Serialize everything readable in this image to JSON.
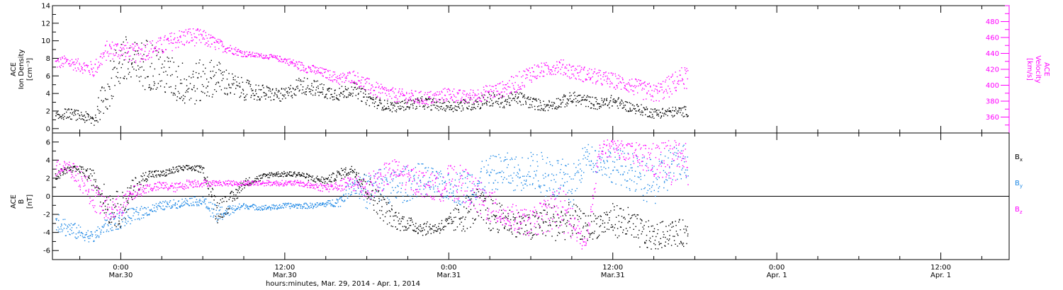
{
  "colors": {
    "axis": "#000000",
    "density": "#000000",
    "velocity": "#ff00ff",
    "bx": "#000000",
    "by": "#1e88e5",
    "bz": "#ff00ff"
  },
  "xaxis": {
    "label": "hours:minutes, Mar. 29, 2014 - Apr. 1, 2014",
    "range_hours": [
      -5,
      65
    ],
    "data_end_hours": 41.5,
    "ticks": [
      {
        "hours": 0,
        "time": "0:00",
        "date": "Mar.30"
      },
      {
        "hours": 12,
        "time": "12:00",
        "date": "Mar.30"
      },
      {
        "hours": 24,
        "time": "0:00",
        "date": "Mar.31"
      },
      {
        "hours": 36,
        "time": "12:00",
        "date": "Mar.31"
      },
      {
        "hours": 48,
        "time": "0:00",
        "date": "Apr. 1"
      },
      {
        "hours": 60,
        "time": "12:00",
        "date": "Apr. 1"
      }
    ]
  },
  "chart_data": [
    {
      "type": "scatter",
      "panel": "top",
      "ylabel_left": [
        "ACE",
        "Ion Density",
        "[cm⁻³]"
      ],
      "ylabel_right": [
        "ACE",
        "Velocity",
        "[km/s]"
      ],
      "ylim_left": [
        -0.5,
        14
      ],
      "ylim_right": [
        340,
        500
      ],
      "yticks_left": [
        0,
        2,
        4,
        6,
        8,
        10,
        12,
        14
      ],
      "yticks_right": [
        360,
        380,
        400,
        420,
        440,
        460,
        480
      ],
      "series": [
        {
          "key": "density",
          "axis": "left",
          "x": [
            -5,
            -4,
            -3,
            -2,
            -1,
            0,
            1,
            2,
            3,
            4,
            5,
            6,
            7,
            8,
            9,
            10,
            11,
            12,
            13,
            14,
            15,
            16,
            17,
            18,
            19,
            20,
            21,
            22,
            23,
            24,
            25,
            26,
            27,
            28,
            29,
            30,
            31,
            32,
            33,
            34,
            35,
            36,
            37,
            38,
            39,
            40,
            41
          ],
          "y": [
            1.2,
            1.8,
            1.5,
            1.0,
            4.5,
            8.0,
            7.0,
            7.5,
            6.5,
            5.5,
            5.0,
            5.5,
            6.0,
            5.0,
            4.5,
            4.2,
            4.0,
            3.8,
            5.0,
            4.8,
            4.2,
            4.0,
            4.6,
            3.5,
            2.8,
            2.5,
            2.8,
            3.0,
            2.8,
            2.6,
            2.7,
            3.0,
            3.4,
            3.1,
            3.6,
            3.0,
            2.6,
            3.0,
            3.5,
            3.2,
            2.8,
            3.2,
            2.6,
            2.2,
            1.8,
            1.9,
            2.0
          ],
          "spread": [
            0.5,
            0.6,
            0.6,
            0.8,
            2.5,
            3.0,
            3.0,
            3.0,
            2.5,
            2.5,
            2.5,
            2.5,
            2.0,
            1.5,
            1.2,
            1.0,
            0.8,
            0.8,
            1.0,
            1.0,
            0.8,
            0.8,
            0.8,
            0.8,
            0.6,
            0.6,
            0.6,
            0.7,
            0.7,
            0.6,
            0.7,
            0.8,
            0.9,
            0.7,
            0.8,
            0.7,
            0.6,
            0.7,
            0.8,
            0.7,
            0.7,
            0.7,
            0.6,
            0.6,
            0.6,
            0.6,
            0.6
          ]
        },
        {
          "key": "velocity",
          "axis": "right",
          "x": [
            -5,
            -4,
            -3,
            -2,
            -1,
            0,
            1,
            2,
            3,
            4,
            5,
            6,
            7,
            8,
            9,
            10,
            11,
            12,
            13,
            14,
            15,
            16,
            17,
            18,
            19,
            20,
            21,
            22,
            23,
            24,
            25,
            26,
            27,
            28,
            29,
            30,
            31,
            32,
            33,
            34,
            35,
            36,
            37,
            38,
            39,
            40,
            41
          ],
          "y": [
            428,
            430,
            425,
            420,
            445,
            445,
            440,
            445,
            450,
            458,
            462,
            460,
            452,
            446,
            440,
            438,
            436,
            432,
            425,
            420,
            415,
            408,
            412,
            400,
            392,
            388,
            386,
            384,
            385,
            390,
            385,
            388,
            392,
            396,
            404,
            416,
            420,
            425,
            418,
            414,
            410,
            406,
            402,
            395,
            390,
            398,
            410
          ],
          "spread": [
            8,
            8,
            8,
            10,
            12,
            12,
            12,
            12,
            12,
            12,
            12,
            10,
            8,
            6,
            4,
            3,
            3,
            4,
            6,
            6,
            6,
            8,
            8,
            10,
            10,
            9,
            9,
            9,
            9,
            9,
            9,
            9,
            10,
            10,
            12,
            12,
            9,
            10,
            10,
            10,
            10,
            10,
            10,
            12,
            12,
            14,
            14
          ]
        }
      ]
    },
    {
      "type": "scatter",
      "panel": "bottom",
      "ylabel_left": [
        "ACE",
        "B",
        "[nT]"
      ],
      "ylim_left": [
        -7,
        7
      ],
      "yticks_left": [
        -6,
        -4,
        -2,
        0,
        2,
        4,
        6
      ],
      "zero_line": true,
      "legend": [
        "B",
        "B",
        "B"
      ],
      "legend_subscripts": [
        "x",
        "y",
        "z"
      ],
      "series": [
        {
          "key": "bx",
          "x": [
            -5,
            -4,
            -3,
            -2,
            -1,
            0,
            1,
            2,
            3,
            4,
            5,
            6,
            7,
            8,
            9,
            10,
            11,
            12,
            13,
            14,
            15,
            16,
            17,
            18,
            19,
            20,
            21,
            22,
            23,
            24,
            25,
            26,
            27,
            28,
            29,
            30,
            31,
            32,
            33,
            34,
            35,
            36,
            37,
            38,
            39,
            40,
            41
          ],
          "y": [
            2.0,
            3.0,
            3.0,
            2.0,
            -1.0,
            -1.5,
            1.0,
            2.5,
            2.5,
            3.0,
            3.2,
            3.0,
            -1.5,
            -0.5,
            1.5,
            2.0,
            2.5,
            2.5,
            2.5,
            2.0,
            1.8,
            2.5,
            3.0,
            1.0,
            -1.0,
            -2.5,
            -3.0,
            -3.5,
            -3.5,
            -3.0,
            -2.0,
            -1.0,
            -2.0,
            -2.5,
            -3.0,
            -3.5,
            -2.5,
            -3.0,
            -2.5,
            -3.5,
            -3.0,
            -2.5,
            -3.0,
            -4.0,
            -4.5,
            -4.0,
            -4.0
          ],
          "spread": [
            0.6,
            0.4,
            0.4,
            1.0,
            2.0,
            2.0,
            1.2,
            0.5,
            0.4,
            0.4,
            0.3,
            0.4,
            1.5,
            1.0,
            0.5,
            0.4,
            0.3,
            0.3,
            0.3,
            0.4,
            0.4,
            0.6,
            0.5,
            1.5,
            1.5,
            1.2,
            0.8,
            0.8,
            0.6,
            1.0,
            2.0,
            2.0,
            2.0,
            1.5,
            1.5,
            1.5,
            2.0,
            2.0,
            2.0,
            1.5,
            1.5,
            1.8,
            2.0,
            1.8,
            1.5,
            1.5,
            1.5
          ]
        },
        {
          "key": "by",
          "x": [
            -5,
            -4,
            -3,
            -2,
            -1,
            0,
            1,
            2,
            3,
            4,
            5,
            6,
            7,
            8,
            9,
            10,
            11,
            12,
            13,
            14,
            15,
            16,
            17,
            18,
            19,
            20,
            21,
            22,
            23,
            24,
            25,
            26,
            27,
            28,
            29,
            30,
            31,
            32,
            33,
            34,
            35,
            36,
            37,
            38,
            39,
            40,
            41
          ],
          "y": [
            -2.0,
            -3.5,
            -4.0,
            -4.5,
            -3.0,
            -2.5,
            -2.0,
            -1.5,
            -1.0,
            -0.8,
            -0.5,
            -0.5,
            -2.0,
            -1.5,
            -1.0,
            -1.2,
            -1.2,
            -1.0,
            -1.0,
            -1.0,
            -0.8,
            -0.5,
            1.5,
            0.5,
            1.5,
            1.0,
            1.5,
            2.0,
            1.5,
            1.0,
            1.0,
            1.5,
            2.5,
            3.0,
            2.5,
            3.0,
            2.5,
            2.0,
            1.0,
            4.5,
            4.0,
            3.5,
            3.0,
            2.0,
            1.5,
            3.0,
            4.0
          ],
          "spread": [
            1.5,
            1.0,
            0.8,
            0.6,
            1.0,
            1.0,
            0.8,
            0.6,
            0.5,
            0.5,
            0.5,
            0.5,
            1.0,
            0.6,
            0.3,
            0.3,
            0.3,
            0.3,
            0.3,
            0.3,
            0.3,
            0.6,
            1.0,
            2.0,
            2.0,
            2.0,
            2.0,
            1.8,
            1.5,
            1.5,
            2.0,
            2.0,
            2.0,
            2.0,
            2.0,
            2.0,
            2.5,
            2.5,
            2.5,
            1.5,
            1.5,
            2.0,
            2.0,
            2.5,
            2.5,
            2.5,
            2.0
          ]
        },
        {
          "key": "bz",
          "x": [
            -5,
            -4,
            -3,
            -2,
            -1,
            0,
            1,
            2,
            3,
            4,
            5,
            6,
            7,
            8,
            9,
            10,
            11,
            12,
            13,
            14,
            15,
            16,
            17,
            18,
            19,
            20,
            21,
            22,
            23,
            24,
            25,
            26,
            27,
            28,
            29,
            30,
            31,
            32,
            33,
            34,
            35,
            36,
            37,
            38,
            39,
            40,
            41
          ],
          "y": [
            3.0,
            3.5,
            2.0,
            0.0,
            -1.5,
            -1.0,
            0.5,
            1.0,
            1.2,
            1.0,
            1.5,
            1.5,
            1.5,
            1.5,
            1.5,
            1.5,
            1.5,
            1.5,
            1.5,
            1.2,
            1.0,
            1.2,
            1.5,
            1.0,
            2.0,
            3.0,
            2.0,
            1.5,
            1.0,
            1.5,
            1.5,
            0.0,
            -1.0,
            -2.0,
            -2.5,
            -3.0,
            -2.0,
            -1.0,
            -3.0,
            -5.5,
            5.0,
            5.5,
            5.0,
            4.5,
            4.0,
            4.0,
            3.5
          ],
          "spread": [
            1.0,
            0.8,
            1.2,
            1.5,
            1.5,
            1.2,
            0.8,
            0.5,
            0.5,
            0.5,
            0.5,
            0.4,
            0.3,
            0.3,
            0.3,
            0.3,
            0.3,
            0.3,
            0.3,
            0.4,
            0.5,
            0.6,
            1.0,
            1.5,
            1.5,
            1.2,
            1.5,
            1.5,
            1.5,
            2.0,
            2.0,
            2.0,
            2.0,
            1.5,
            1.5,
            1.5,
            2.0,
            2.5,
            2.5,
            0.5,
            1.0,
            1.0,
            1.0,
            1.5,
            2.0,
            2.5,
            2.5
          ]
        }
      ]
    }
  ]
}
